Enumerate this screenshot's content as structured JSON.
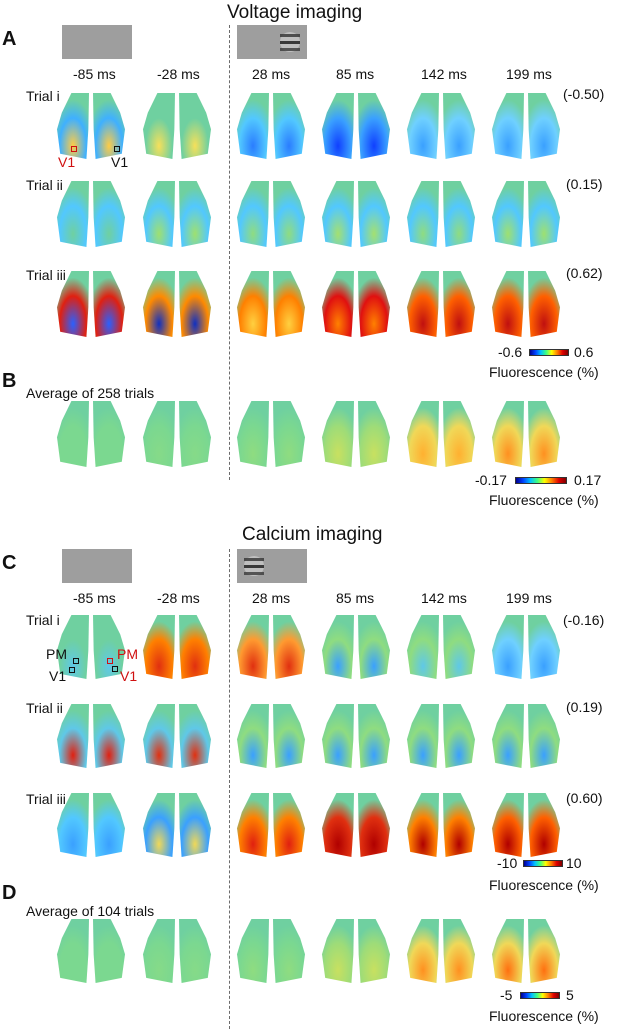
{
  "voltage": {
    "title": "Voltage imaging",
    "panel_a": "A",
    "panel_b": "B",
    "times": [
      "-85 ms",
      "-28 ms",
      "28 ms",
      "85 ms",
      "142 ms",
      "199 ms"
    ],
    "trials": [
      {
        "label": "Trial i",
        "corr": "(-0.50)"
      },
      {
        "label": "Trial ii",
        "corr": "(0.15)"
      },
      {
        "label": "Trial iii",
        "corr": "(0.62)"
      }
    ],
    "roi_left": "V1",
    "roi_right": "V1",
    "colorbar_trials": {
      "min": "-0.6",
      "max": "0.6",
      "label": "Fluorescence (%)"
    },
    "average_label": "Average of 258 trials",
    "colorbar_avg": {
      "min": "-0.17",
      "max": "0.17",
      "label": "Fluorescence (%)"
    }
  },
  "calcium": {
    "title": "Calcium imaging",
    "panel_c": "C",
    "panel_d": "D",
    "times": [
      "-85 ms",
      "-28 ms",
      "28 ms",
      "85 ms",
      "142 ms",
      "199 ms"
    ],
    "trials": [
      {
        "label": "Trial i",
        "corr": "(-0.16)"
      },
      {
        "label": "Trial ii",
        "corr": "(0.19)"
      },
      {
        "label": "Trial iii",
        "corr": "(0.60)"
      }
    ],
    "roi_pm_left": "PM",
    "roi_v1_left": "V1",
    "roi_pm_right": "PM",
    "roi_v1_right": "V1",
    "colorbar_trials": {
      "min": "-10",
      "max": "10",
      "label": "Fluorescence (%)"
    },
    "average_label": "Average of 104 trials",
    "colorbar_avg": {
      "min": "-5",
      "max": "5",
      "label": "Fluorescence (%)"
    }
  },
  "colors": {
    "roi_red": "#d01010",
    "roi_black": "#111111",
    "stimulus_gray": "#9e9e9e",
    "divider": "#6b6b6b"
  }
}
